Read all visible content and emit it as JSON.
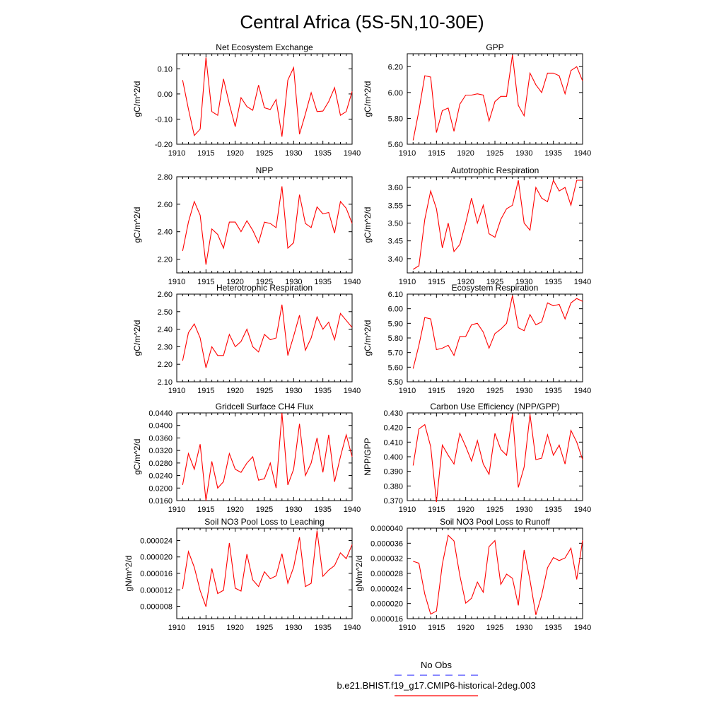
{
  "figure": {
    "title": "Central Africa (5S-5N,10-30E)",
    "series_color": "#ff0000",
    "obs_color": "#4040ff"
  },
  "legend": {
    "obs_label": "No Obs",
    "model_label": "b.e21.BHIST.f19_g17.CMIP6-historical-2deg.003"
  },
  "chart_data": [
    {
      "type": "line",
      "title": "Net Ecosystem Exchange",
      "ylabel": "gC/m^2/d",
      "xlim": [
        1910,
        1940
      ],
      "ylim": [
        -0.2,
        0.16
      ],
      "x_ticks": [
        1910,
        1915,
        1920,
        1925,
        1930,
        1935,
        1940
      ],
      "y_ticks": [
        "-0.20",
        "-0.10",
        "0.00",
        "0.10"
      ],
      "x": [
        1911,
        1912,
        1913,
        1914,
        1915,
        1916,
        1917,
        1918,
        1919,
        1920,
        1921,
        1922,
        1923,
        1924,
        1925,
        1926,
        1927,
        1928,
        1929,
        1930,
        1931,
        1932,
        1933,
        1934,
        1935,
        1936,
        1937,
        1938,
        1939,
        1940
      ],
      "values": [
        0.055,
        -0.06,
        -0.165,
        -0.14,
        0.145,
        -0.07,
        -0.085,
        0.06,
        -0.04,
        -0.13,
        -0.015,
        -0.05,
        -0.065,
        0.035,
        -0.055,
        -0.062,
        -0.022,
        -0.17,
        0.055,
        0.105,
        -0.16,
        -0.08,
        0.005,
        -0.07,
        -0.068,
        -0.03,
        0.025,
        -0.085,
        -0.07,
        0.01
      ]
    },
    {
      "type": "line",
      "title": "GPP",
      "ylabel": "gC/m^2/d",
      "xlim": [
        1910,
        1940
      ],
      "ylim": [
        5.6,
        6.3
      ],
      "x_ticks": [
        1910,
        1915,
        1920,
        1925,
        1930,
        1935,
        1940
      ],
      "y_ticks": [
        "5.60",
        "5.80",
        "6.00",
        "6.20"
      ],
      "x": [
        1911,
        1912,
        1913,
        1914,
        1915,
        1916,
        1917,
        1918,
        1919,
        1920,
        1921,
        1922,
        1923,
        1924,
        1925,
        1926,
        1927,
        1928,
        1929,
        1930,
        1931,
        1932,
        1933,
        1934,
        1935,
        1936,
        1937,
        1938,
        1939,
        1940
      ],
      "values": [
        5.63,
        5.86,
        6.13,
        6.12,
        5.69,
        5.86,
        5.88,
        5.7,
        5.91,
        5.98,
        5.98,
        5.99,
        5.98,
        5.78,
        5.93,
        5.97,
        5.97,
        6.29,
        5.9,
        5.82,
        6.15,
        6.06,
        6.0,
        6.15,
        6.15,
        6.13,
        5.99,
        6.17,
        6.2,
        6.09
      ]
    },
    {
      "type": "line",
      "title": "NPP",
      "ylabel": "gC/m^2/d",
      "xlim": [
        1910,
        1940
      ],
      "ylim": [
        2.1,
        2.8
      ],
      "x_ticks": [
        1910,
        1915,
        1920,
        1925,
        1930,
        1935,
        1940
      ],
      "y_ticks": [
        "2.20",
        "2.40",
        "2.60",
        "2.80"
      ],
      "x": [
        1911,
        1912,
        1913,
        1914,
        1915,
        1916,
        1917,
        1918,
        1919,
        1920,
        1921,
        1922,
        1923,
        1924,
        1925,
        1926,
        1927,
        1928,
        1929,
        1930,
        1931,
        1932,
        1933,
        1934,
        1935,
        1936,
        1937,
        1938,
        1939,
        1940
      ],
      "values": [
        2.26,
        2.47,
        2.62,
        2.52,
        2.16,
        2.42,
        2.38,
        2.28,
        2.47,
        2.47,
        2.4,
        2.48,
        2.41,
        2.32,
        2.47,
        2.46,
        2.43,
        2.73,
        2.28,
        2.32,
        2.67,
        2.46,
        2.43,
        2.58,
        2.53,
        2.54,
        2.39,
        2.62,
        2.57,
        2.46
      ]
    },
    {
      "type": "line",
      "title": "Autotrophic Respiration",
      "ylabel": "gC/m^2/d",
      "xlim": [
        1910,
        1940
      ],
      "ylim": [
        3.36,
        3.63
      ],
      "x_ticks": [
        1910,
        1915,
        1920,
        1925,
        1930,
        1935,
        1940
      ],
      "y_ticks": [
        "3.40",
        "3.45",
        "3.50",
        "3.55",
        "3.60"
      ],
      "x": [
        1911,
        1912,
        1913,
        1914,
        1915,
        1916,
        1917,
        1918,
        1919,
        1920,
        1921,
        1922,
        1923,
        1924,
        1925,
        1926,
        1927,
        1928,
        1929,
        1930,
        1931,
        1932,
        1933,
        1934,
        1935,
        1936,
        1937,
        1938,
        1939,
        1940
      ],
      "values": [
        3.37,
        3.38,
        3.51,
        3.59,
        3.54,
        3.43,
        3.5,
        3.42,
        3.44,
        3.5,
        3.57,
        3.5,
        3.55,
        3.47,
        3.46,
        3.51,
        3.54,
        3.55,
        3.62,
        3.5,
        3.48,
        3.6,
        3.57,
        3.56,
        3.62,
        3.59,
        3.6,
        3.55,
        3.62,
        3.62
      ]
    },
    {
      "type": "line",
      "title": "Heterotrophic Respiration",
      "ylabel": "gC/m^2/d",
      "xlim": [
        1910,
        1940
      ],
      "ylim": [
        2.1,
        2.6
      ],
      "x_ticks": [
        1910,
        1915,
        1920,
        1925,
        1930,
        1935,
        1940
      ],
      "y_ticks": [
        "2.10",
        "2.20",
        "2.30",
        "2.40",
        "2.50",
        "2.60"
      ],
      "x": [
        1911,
        1912,
        1913,
        1914,
        1915,
        1916,
        1917,
        1918,
        1919,
        1920,
        1921,
        1922,
        1923,
        1924,
        1925,
        1926,
        1927,
        1928,
        1929,
        1930,
        1931,
        1932,
        1933,
        1934,
        1935,
        1936,
        1937,
        1938,
        1939,
        1940
      ],
      "values": [
        2.22,
        2.38,
        2.43,
        2.35,
        2.18,
        2.3,
        2.25,
        2.25,
        2.37,
        2.3,
        2.33,
        2.4,
        2.3,
        2.27,
        2.37,
        2.34,
        2.35,
        2.54,
        2.25,
        2.36,
        2.48,
        2.28,
        2.35,
        2.47,
        2.4,
        2.44,
        2.34,
        2.49,
        2.45,
        2.41
      ]
    },
    {
      "type": "line",
      "title": "Ecosystem Respiration",
      "ylabel": "gC/m^2/d",
      "xlim": [
        1910,
        1940
      ],
      "ylim": [
        5.5,
        6.1
      ],
      "x_ticks": [
        1910,
        1915,
        1920,
        1925,
        1930,
        1935,
        1940
      ],
      "y_ticks": [
        "5.50",
        "5.60",
        "5.70",
        "5.80",
        "5.90",
        "6.00",
        "6.10"
      ],
      "x": [
        1911,
        1912,
        1913,
        1914,
        1915,
        1916,
        1917,
        1918,
        1919,
        1920,
        1921,
        1922,
        1923,
        1924,
        1925,
        1926,
        1927,
        1928,
        1929,
        1930,
        1931,
        1932,
        1933,
        1934,
        1935,
        1936,
        1937,
        1938,
        1939,
        1940
      ],
      "values": [
        5.59,
        5.75,
        5.94,
        5.93,
        5.72,
        5.73,
        5.75,
        5.68,
        5.81,
        5.81,
        5.89,
        5.9,
        5.84,
        5.73,
        5.83,
        5.86,
        5.9,
        6.09,
        5.87,
        5.85,
        5.96,
        5.89,
        5.91,
        6.04,
        6.02,
        6.03,
        5.93,
        6.04,
        6.07,
        6.05
      ]
    },
    {
      "type": "line",
      "title": "Gridcell Surface CH4 Flux",
      "ylabel": "gC/m^2/d",
      "xlim": [
        1910,
        1940
      ],
      "ylim": [
        0.016,
        0.044
      ],
      "x_ticks": [
        1910,
        1915,
        1920,
        1925,
        1930,
        1935,
        1940
      ],
      "y_ticks": [
        "0.0160",
        "0.0200",
        "0.0240",
        "0.0280",
        "0.0320",
        "0.0360",
        "0.0400",
        "0.0440"
      ],
      "x": [
        1911,
        1912,
        1913,
        1914,
        1915,
        1916,
        1917,
        1918,
        1919,
        1920,
        1921,
        1922,
        1923,
        1924,
        1925,
        1926,
        1927,
        1928,
        1929,
        1930,
        1931,
        1932,
        1933,
        1934,
        1935,
        1936,
        1937,
        1938,
        1939,
        1940
      ],
      "values": [
        0.021,
        0.031,
        0.026,
        0.034,
        0.016,
        0.0285,
        0.02,
        0.022,
        0.031,
        0.026,
        0.025,
        0.028,
        0.03,
        0.0225,
        0.023,
        0.028,
        0.02,
        0.044,
        0.021,
        0.026,
        0.0405,
        0.024,
        0.028,
        0.036,
        0.025,
        0.037,
        0.022,
        0.03,
        0.037,
        0.03
      ]
    },
    {
      "type": "line",
      "title": "Carbon Use Efficiency (NPP/GPP)",
      "ylabel": "NPP/GPP",
      "xlim": [
        1910,
        1940
      ],
      "ylim": [
        0.37,
        0.43
      ],
      "x_ticks": [
        1910,
        1915,
        1920,
        1925,
        1930,
        1935,
        1940
      ],
      "y_ticks": [
        "0.370",
        "0.380",
        "0.390",
        "0.400",
        "0.410",
        "0.420",
        "0.430"
      ],
      "x": [
        1911,
        1912,
        1913,
        1914,
        1915,
        1916,
        1917,
        1918,
        1919,
        1920,
        1921,
        1922,
        1923,
        1924,
        1925,
        1926,
        1927,
        1928,
        1929,
        1930,
        1931,
        1932,
        1933,
        1934,
        1935,
        1936,
        1937,
        1938,
        1939,
        1940
      ],
      "values": [
        0.394,
        0.419,
        0.422,
        0.407,
        0.369,
        0.408,
        0.401,
        0.395,
        0.416,
        0.407,
        0.397,
        0.411,
        0.395,
        0.388,
        0.416,
        0.405,
        0.401,
        0.429,
        0.379,
        0.393,
        0.429,
        0.398,
        0.399,
        0.415,
        0.401,
        0.408,
        0.395,
        0.418,
        0.41,
        0.398
      ]
    },
    {
      "type": "line",
      "title": "Soil NO3 Pool Loss to Leaching",
      "ylabel": "gN/m^2/d",
      "xlim": [
        1910,
        1940
      ],
      "ylim": [
        5e-06,
        2.7e-05
      ],
      "x_ticks": [
        1910,
        1915,
        1920,
        1925,
        1930,
        1935,
        1940
      ],
      "y_ticks": [
        "0.000008",
        "0.000012",
        "0.000016",
        "0.000020",
        "0.000024"
      ],
      "x": [
        1911,
        1912,
        1913,
        1914,
        1915,
        1916,
        1917,
        1918,
        1919,
        1920,
        1921,
        1922,
        1923,
        1924,
        1925,
        1926,
        1927,
        1928,
        1929,
        1930,
        1931,
        1932,
        1933,
        1934,
        1935,
        1936,
        1937,
        1938,
        1939,
        1940
      ],
      "values": [
        1.22e-05,
        2.13e-05,
        1.75e-05,
        1.18e-05,
        7.9e-06,
        1.72e-05,
        1.11e-05,
        1.19e-05,
        2.34e-05,
        1.24e-05,
        1.17e-05,
        2.07e-05,
        1.44e-05,
        1.28e-05,
        1.64e-05,
        1.47e-05,
        1.54e-05,
        2.08e-05,
        1.36e-05,
        1.75e-05,
        2.48e-05,
        1.28e-05,
        1.36e-05,
        2.64e-05,
        1.53e-05,
        1.68e-05,
        1.79e-05,
        2.1e-05,
        1.96e-05,
        2.3e-05
      ]
    },
    {
      "type": "line",
      "title": "Soil NO3 Pool Loss to Runoff",
      "ylabel": "gN/m^2/d",
      "xlim": [
        1910,
        1940
      ],
      "ylim": [
        1.6e-05,
        4e-05
      ],
      "x_ticks": [
        1910,
        1915,
        1920,
        1925,
        1930,
        1935,
        1940
      ],
      "y_ticks": [
        "0.000016",
        "0.000020",
        "0.000024",
        "0.000028",
        "0.000032",
        "0.000036",
        "0.000040"
      ],
      "x": [
        1911,
        1912,
        1913,
        1914,
        1915,
        1916,
        1917,
        1918,
        1919,
        1920,
        1921,
        1922,
        1923,
        1924,
        1925,
        1926,
        1927,
        1928,
        1929,
        1930,
        1931,
        1932,
        1933,
        1934,
        1935,
        1936,
        1937,
        1938,
        1939,
        1940
      ],
      "values": [
        3.12e-05,
        3.07e-05,
        2.25e-05,
        1.72e-05,
        1.8e-05,
        3.04e-05,
        3.81e-05,
        3.66e-05,
        2.74e-05,
        2.01e-05,
        2.14e-05,
        2.57e-05,
        2.3e-05,
        3.51e-05,
        3.67e-05,
        2.51e-05,
        2.78e-05,
        2.67e-05,
        1.95e-05,
        3.42e-05,
        2.62e-05,
        1.7e-05,
        2.22e-05,
        2.95e-05,
        3.22e-05,
        3.14e-05,
        3.21e-05,
        3.47e-05,
        2.64e-05,
        3.68e-05
      ]
    }
  ]
}
